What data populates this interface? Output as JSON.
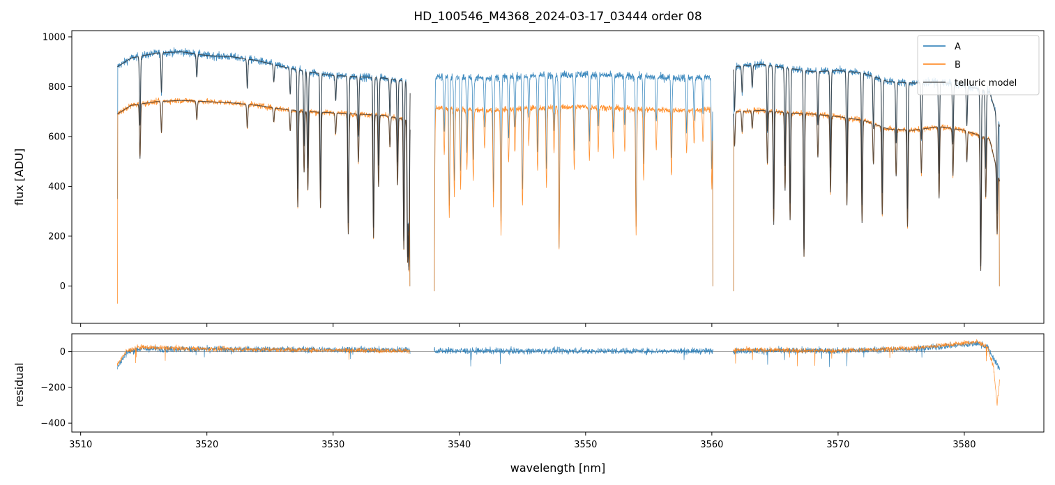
{
  "title": "HD_100546_M4368_2024-03-17_03444  order 08",
  "colors": {
    "A": "#1f77b4",
    "B": "#ff7f0e",
    "telluric": "#333333",
    "zero_line": "#888888"
  },
  "chart_data": [
    {
      "id": "flux",
      "type": "line",
      "xlabel": "",
      "ylabel": "flux [ADU]",
      "xlim": [
        3509.3,
        3586.3
      ],
      "ylim": [
        -150,
        1025
      ],
      "yticks": [
        0,
        200,
        400,
        600,
        800,
        1000
      ],
      "xticks": [
        3510,
        3520,
        3530,
        3540,
        3550,
        3560,
        3570,
        3580
      ],
      "xtick_labels_visible": false,
      "legend": {
        "placement": "top-right",
        "entries": [
          "A",
          "B",
          "telluric model"
        ]
      },
      "segments": [
        [
          3512.9,
          3536.1
        ],
        [
          3538.0,
          3560.1
        ],
        [
          3561.7,
          3582.8
        ]
      ],
      "series": [
        {
          "name": "A",
          "continuum": [
            [
              3512.9,
              880
            ],
            [
              3514,
              915
            ],
            [
              3516,
              935
            ],
            [
              3518,
              940
            ],
            [
              3520,
              925
            ],
            [
              3522,
              920
            ],
            [
              3524,
              905
            ],
            [
              3526,
              880
            ],
            [
              3528,
              860
            ],
            [
              3530,
              845
            ],
            [
              3532,
              840
            ],
            [
              3534,
              835
            ],
            [
              3536.1,
              820
            ],
            [
              3538.0,
              840
            ],
            [
              3542,
              835
            ],
            [
              3546,
              845
            ],
            [
              3550,
              850
            ],
            [
              3554,
              840
            ],
            [
              3558,
              835
            ],
            [
              3560.1,
              840
            ],
            [
              3561.7,
              880
            ],
            [
              3564,
              890
            ],
            [
              3566,
              875
            ],
            [
              3568,
              860
            ],
            [
              3570,
              865
            ],
            [
              3572,
              855
            ],
            [
              3574,
              820
            ],
            [
              3576,
              815
            ],
            [
              3578,
              820
            ],
            [
              3580,
              805
            ],
            [
              3582,
              780
            ],
            [
              3582.8,
              640
            ]
          ]
        },
        {
          "name": "B",
          "continuum": [
            [
              3512.9,
              690
            ],
            [
              3514,
              725
            ],
            [
              3516,
              740
            ],
            [
              3518,
              745
            ],
            [
              3520,
              740
            ],
            [
              3522,
              735
            ],
            [
              3524,
              725
            ],
            [
              3526,
              710
            ],
            [
              3528,
              700
            ],
            [
              3530,
              695
            ],
            [
              3532,
              690
            ],
            [
              3534,
              685
            ],
            [
              3536.1,
              665
            ],
            [
              3538.0,
              715
            ],
            [
              3542,
              705
            ],
            [
              3546,
              715
            ],
            [
              3550,
              720
            ],
            [
              3554,
              710
            ],
            [
              3558,
              705
            ],
            [
              3560.1,
              710
            ],
            [
              3561.7,
              700
            ],
            [
              3564,
              705
            ],
            [
              3566,
              695
            ],
            [
              3568,
              690
            ],
            [
              3570,
              680
            ],
            [
              3572,
              665
            ],
            [
              3574,
              630
            ],
            [
              3576,
              625
            ],
            [
              3578,
              640
            ],
            [
              3580,
              625
            ],
            [
              3582,
              590
            ],
            [
              3582.8,
              420
            ]
          ]
        },
        {
          "name": "telluric model",
          "segments": [
            [
              3512.9,
              3536.1
            ],
            [
              3561.7,
              3582.8
            ]
          ]
        }
      ],
      "absorption_lines": [
        {
          "x": 3514.7,
          "depth": 0.3
        },
        {
          "x": 3516.4,
          "depth": 0.17
        },
        {
          "x": 3519.2,
          "depth": 0.1
        },
        {
          "x": 3523.2,
          "depth": 0.13
        },
        {
          "x": 3525.3,
          "depth": 0.08
        },
        {
          "x": 3526.6,
          "depth": 0.12
        },
        {
          "x": 3527.2,
          "depth": 0.55
        },
        {
          "x": 3527.7,
          "depth": 0.35
        },
        {
          "x": 3528.0,
          "depth": 0.45
        },
        {
          "x": 3529.0,
          "depth": 0.55
        },
        {
          "x": 3530.2,
          "depth": 0.12
        },
        {
          "x": 3531.2,
          "depth": 0.7
        },
        {
          "x": 3532.0,
          "depth": 0.28
        },
        {
          "x": 3533.2,
          "depth": 0.72
        },
        {
          "x": 3533.6,
          "depth": 0.42
        },
        {
          "x": 3534.5,
          "depth": 0.18
        },
        {
          "x": 3535.1,
          "depth": 0.4
        },
        {
          "x": 3535.6,
          "depth": 0.78
        },
        {
          "x": 3535.9,
          "depth": 0.85
        },
        {
          "x": 3536.0,
          "depth": 0.9
        },
        {
          "x": 3538.0,
          "depth": 0.92
        },
        {
          "x": 3538.8,
          "depth": 0.25
        },
        {
          "x": 3539.2,
          "depth": 0.62
        },
        {
          "x": 3539.6,
          "depth": 0.5
        },
        {
          "x": 3540.1,
          "depth": 0.45
        },
        {
          "x": 3540.6,
          "depth": 0.35
        },
        {
          "x": 3541.1,
          "depth": 0.4
        },
        {
          "x": 3542.0,
          "depth": 0.22
        },
        {
          "x": 3542.7,
          "depth": 0.55
        },
        {
          "x": 3543.3,
          "depth": 0.7
        },
        {
          "x": 3543.9,
          "depth": 0.3
        },
        {
          "x": 3544.4,
          "depth": 0.25
        },
        {
          "x": 3545.0,
          "depth": 0.55
        },
        {
          "x": 3545.5,
          "depth": 0.2
        },
        {
          "x": 3546.2,
          "depth": 0.35
        },
        {
          "x": 3546.9,
          "depth": 0.45
        },
        {
          "x": 3547.5,
          "depth": 0.25
        },
        {
          "x": 3547.9,
          "depth": 0.8
        },
        {
          "x": 3549.1,
          "depth": 0.35
        },
        {
          "x": 3550.3,
          "depth": 0.3
        },
        {
          "x": 3551.0,
          "depth": 0.25
        },
        {
          "x": 3552.2,
          "depth": 0.28
        },
        {
          "x": 3553.1,
          "depth": 0.24
        },
        {
          "x": 3554.0,
          "depth": 0.7
        },
        {
          "x": 3554.6,
          "depth": 0.4
        },
        {
          "x": 3555.6,
          "depth": 0.22
        },
        {
          "x": 3556.8,
          "depth": 0.38
        },
        {
          "x": 3558.0,
          "depth": 0.25
        },
        {
          "x": 3558.6,
          "depth": 0.2
        },
        {
          "x": 3559.3,
          "depth": 0.18
        },
        {
          "x": 3560.0,
          "depth": 0.45
        },
        {
          "x": 3561.8,
          "depth": 0.2
        },
        {
          "x": 3562.4,
          "depth": 0.12
        },
        {
          "x": 3563.2,
          "depth": 0.1
        },
        {
          "x": 3564.4,
          "depth": 0.3
        },
        {
          "x": 3564.9,
          "depth": 0.65
        },
        {
          "x": 3565.8,
          "depth": 0.45
        },
        {
          "x": 3566.2,
          "depth": 0.62
        },
        {
          "x": 3567.3,
          "depth": 0.83
        },
        {
          "x": 3568.4,
          "depth": 0.25
        },
        {
          "x": 3569.4,
          "depth": 0.45
        },
        {
          "x": 3570.7,
          "depth": 0.52
        },
        {
          "x": 3571.9,
          "depth": 0.62
        },
        {
          "x": 3572.8,
          "depth": 0.25
        },
        {
          "x": 3573.5,
          "depth": 0.55
        },
        {
          "x": 3574.6,
          "depth": 0.3
        },
        {
          "x": 3575.5,
          "depth": 0.62
        },
        {
          "x": 3576.6,
          "depth": 0.28
        },
        {
          "x": 3578.0,
          "depth": 0.45
        },
        {
          "x": 3579.1,
          "depth": 0.3
        },
        {
          "x": 3580.2,
          "depth": 0.2
        },
        {
          "x": 3581.3,
          "depth": 0.9
        },
        {
          "x": 3581.7,
          "depth": 0.4
        },
        {
          "x": 3582.6,
          "depth": 0.55
        }
      ]
    },
    {
      "id": "residual",
      "type": "line",
      "xlabel": "wavelength [nm]",
      "ylabel": "residual",
      "xlim": [
        3509.3,
        3586.3
      ],
      "ylim": [
        -450,
        100
      ],
      "yticks": [
        -400,
        -200,
        0
      ],
      "xticks": [
        3510,
        3520,
        3530,
        3540,
        3550,
        3560,
        3570,
        3580
      ],
      "zero_line": true,
      "series": [
        {
          "name": "A",
          "baseline": [
            [
              3512.9,
              -90
            ],
            [
              3513.6,
              -10
            ],
            [
              3514.5,
              15
            ],
            [
              3536.1,
              10
            ],
            [
              3538.0,
              5
            ],
            [
              3560.1,
              3
            ],
            [
              3561.7,
              5
            ],
            [
              3570,
              5
            ],
            [
              3576,
              15
            ],
            [
              3581,
              45
            ],
            [
              3581.8,
              30
            ],
            [
              3582.8,
              -100
            ]
          ],
          "noise": 18
        },
        {
          "name": "B",
          "segments": [
            [
              3512.9,
              3536.1
            ],
            [
              3561.7,
              3582.8
            ]
          ],
          "baseline": [
            [
              3512.9,
              -70
            ],
            [
              3513.6,
              0
            ],
            [
              3514.5,
              25
            ],
            [
              3520,
              15
            ],
            [
              3536.1,
              5
            ],
            [
              3561.7,
              10
            ],
            [
              3570,
              5
            ],
            [
              3576,
              20
            ],
            [
              3581,
              55
            ],
            [
              3581.8,
              30
            ],
            [
              3582.3,
              -80
            ],
            [
              3582.6,
              -300
            ],
            [
              3582.8,
              -150
            ]
          ],
          "noise": 14
        }
      ]
    }
  ]
}
